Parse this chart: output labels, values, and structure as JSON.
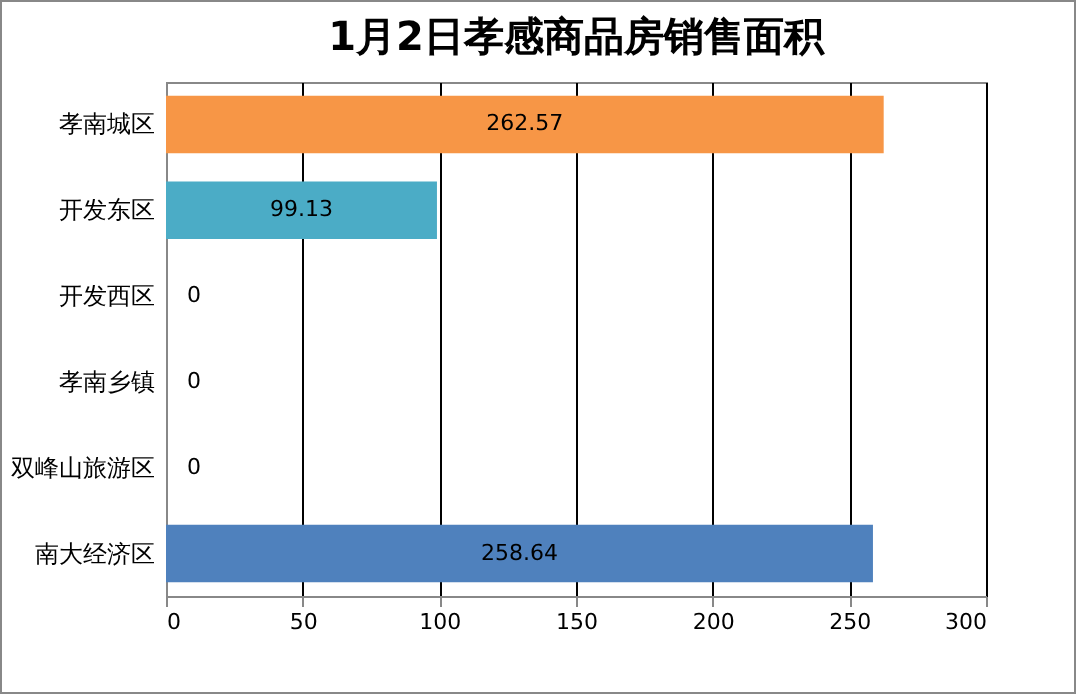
{
  "chart_data": {
    "type": "bar",
    "orientation": "horizontal",
    "title": "1月2日孝感商品房销售面积",
    "categories": [
      "孝南城区",
      "开发东区",
      "开发西区",
      "孝南乡镇",
      "双峰山旅游区",
      "南大经济区"
    ],
    "values": [
      262.57,
      99.13,
      0,
      0,
      0,
      258.64
    ],
    "colors": [
      "#f79646",
      "#4bacc6",
      "#4bacc6",
      "#4bacc6",
      "#4bacc6",
      "#4f81bd"
    ],
    "xlim": [
      0,
      300
    ],
    "xticks": [
      0,
      50,
      100,
      150,
      200,
      250,
      300
    ],
    "grid": "x",
    "data_labels": true
  }
}
